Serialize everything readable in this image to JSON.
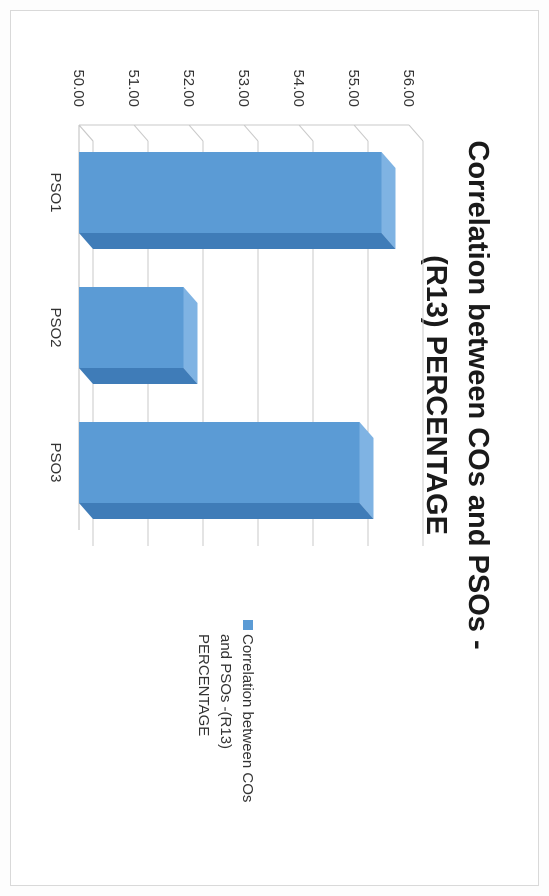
{
  "chart_data": {
    "type": "bar",
    "orientation": "vertical (page rotated 90° clockwise)",
    "title_lines": [
      "Correlation between COs and PSOs -",
      "(R13) PERCENTAGE"
    ],
    "categories": [
      "PSO1",
      "PSO2",
      "PSO3"
    ],
    "series": [
      {
        "name": "Correlation between COs and PSOs -(R13) PERCENTAGE",
        "legend_lines": [
          "Correlation between COs",
          "and PSOs -(R13)",
          "PERCENTAGE"
        ],
        "values": [
          55.5,
          51.9,
          55.1
        ],
        "color": "#5B9BD5"
      }
    ],
    "y_ticks": [
      "50.00",
      "51.00",
      "52.00",
      "53.00",
      "54.00",
      "55.00",
      "56.00"
    ],
    "ylim": [
      50,
      56
    ],
    "grid": true,
    "legend_position": "right",
    "style": "3d-column"
  }
}
